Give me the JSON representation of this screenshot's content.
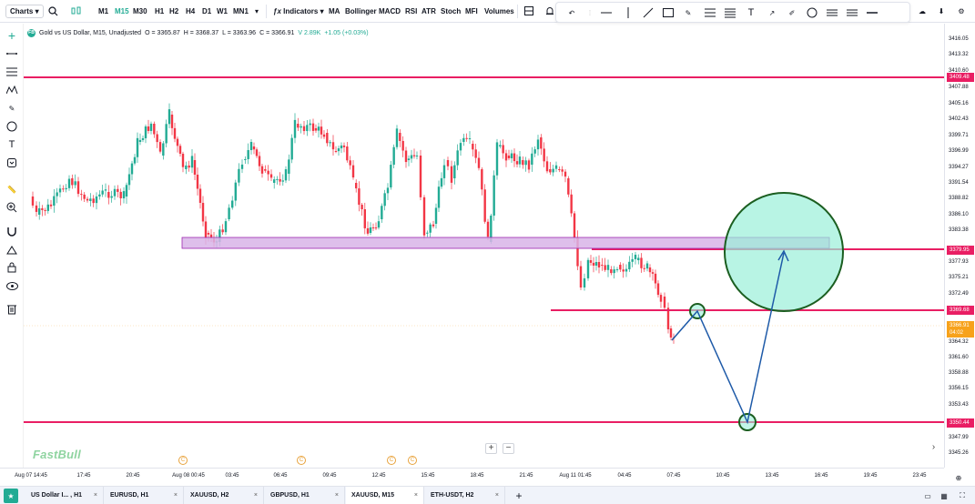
{
  "toolbar": {
    "charts_label": "Charts",
    "timeframes": [
      "M1",
      "M15",
      "M30",
      "H1",
      "H2",
      "H4",
      "D1",
      "W1",
      "MN1"
    ],
    "active_timeframe": "M15",
    "indicators_label": "Indicators",
    "indicators": [
      "MA",
      "Bollinger",
      "MACD",
      "RSI",
      "ATR",
      "Stoch",
      "MFI",
      "Volumes"
    ]
  },
  "legend": {
    "symbol": "Gold vs US Dollar, M15, Unadjusted",
    "o": "O = 3365.87",
    "h": "H = 3368.37",
    "l": "L = 3363.96",
    "c": "C = 3366.91",
    "v": "V 2.89K",
    "chg": "+1.05 (+0.03%)"
  },
  "price_axis": {
    "labels": [
      "3416.05",
      "3413.32",
      "3410.60",
      "3407.88",
      "3405.16",
      "3402.43",
      "3399.71",
      "3396.99",
      "3394.27",
      "3391.54",
      "3388.82",
      "3386.10",
      "3383.38",
      "3377.93",
      "3375.21",
      "3372.49",
      "3364.32",
      "3361.60",
      "3358.88",
      "3356.15",
      "3353.43",
      "3347.99",
      "3345.26"
    ],
    "tags": [
      {
        "text": "3409.48",
        "color": "#e91e63"
      },
      {
        "text": "3379.95",
        "color": "#e91e63"
      },
      {
        "text": "3369.68",
        "color": "#e91e63"
      },
      {
        "text": "3366.91",
        "color": "#f7a21b"
      },
      {
        "text": "04:02",
        "color": "#f7a21b"
      },
      {
        "text": "3350.44",
        "color": "#e91e63"
      }
    ]
  },
  "time_axis": [
    "Aug 07 14:45",
    "17:45",
    "20:45",
    "Aug 08 00:45",
    "03:45",
    "06:45",
    "09:45",
    "12:45",
    "15:45",
    "18:45",
    "21:45",
    "Aug 11 01:45",
    "04:45",
    "07:45",
    "10:45",
    "13:45",
    "16:45",
    "19:45",
    "23:45"
  ],
  "watermark": "FastBull",
  "events": [
    "C",
    "C",
    "C",
    "C"
  ],
  "zoom": {
    "plus": "+",
    "minus": "−"
  },
  "bottom_tabs": [
    {
      "label": "US Dollar I... , H1",
      "active": false
    },
    {
      "label": "EURUSD, H1",
      "active": false
    },
    {
      "label": "XAUUSD, H2",
      "active": false
    },
    {
      "label": "GBPUSD, H1",
      "active": false
    },
    {
      "label": "XAUUSD, M15",
      "active": true
    },
    {
      "label": "ETH-USDT, H2",
      "active": false
    }
  ],
  "tab_close": "×",
  "add_tab": "+",
  "colors": {
    "up": "#22ab94",
    "down": "#f23645",
    "level": "#e91e63",
    "zone": "#d8b4e8",
    "circle": "#9af0d8"
  }
}
